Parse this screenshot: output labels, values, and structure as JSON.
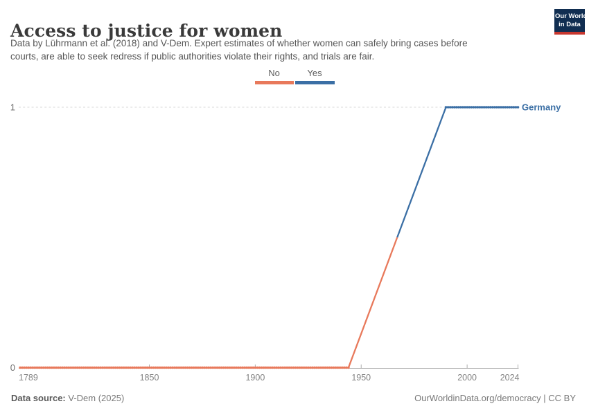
{
  "header": {
    "title": "Access to justice for women",
    "subtitle_lines": [
      "Data by Lührmann et al. (2018) and V-Dem. Expert estimates of whether women can safely bring cases before",
      "courts, are able to seek redress if public authorities violate their rights, and trials are fair."
    ],
    "logo": {
      "line1": "Our World",
      "line2": "in Data",
      "bg_color": "#112E51",
      "underline_color": "#C7372F"
    }
  },
  "legend": {
    "items": [
      {
        "label": "No",
        "color": "#E8795B"
      },
      {
        "label": "Yes",
        "color": "#3B6FA5"
      }
    ]
  },
  "chart_data": {
    "type": "line",
    "title": "Access to justice for women",
    "entity": "Germany",
    "xlabel": "",
    "ylabel": "",
    "xlim": [
      1789,
      2024
    ],
    "ylim": [
      0,
      1
    ],
    "x_ticks": [
      1789,
      1850,
      1900,
      1950,
      2000,
      2024
    ],
    "y_ticks": [
      0,
      1
    ],
    "grid": "dashed horizontal gridline at y=1, solid axis at y=0",
    "legend_position": "top-center",
    "marker_style": "annual dot markers along constant-value segments",
    "series": [
      {
        "name": "Germany",
        "label_color": "#3B6FA5",
        "segments": [
          {
            "category": "No",
            "color": "#E8795B",
            "start_year": 1789,
            "end_year": 1944,
            "value": 0
          },
          {
            "category": "Yes",
            "color": "#3B6FA5",
            "start_year": 1990,
            "end_year": 2024,
            "value": 1
          }
        ],
        "gap_connector": {
          "from_year": 1944,
          "from_value": 0,
          "to_year": 1990,
          "to_value": 1,
          "note": "straight interpolation line, colored orange for first half and blue for second half"
        }
      }
    ]
  },
  "footer": {
    "source_label": "Data source:",
    "source_value": "V-Dem (2025)",
    "link": "OurWorldinData.org/democracy | CC BY"
  }
}
